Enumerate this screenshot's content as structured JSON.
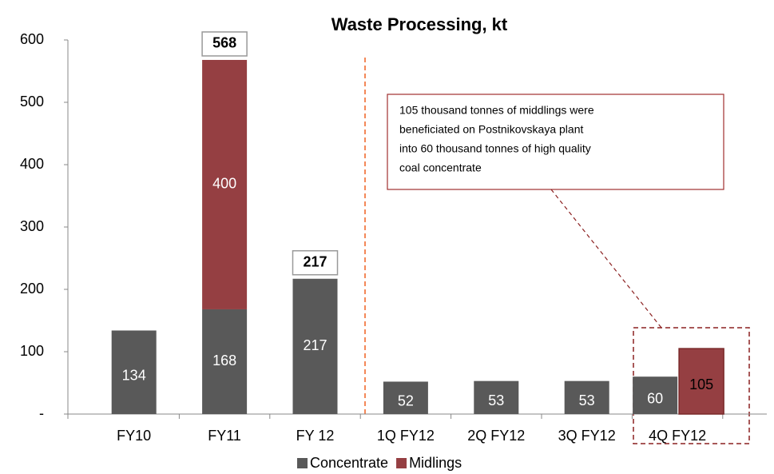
{
  "chart_data": {
    "type": "bar",
    "title": "Waste Processing, kt",
    "categories": [
      "FY10",
      "FY11",
      "FY 12",
      "1Q FY12",
      "2Q FY12",
      "3Q FY12",
      "4Q FY12"
    ],
    "series": [
      {
        "name": "Concentrate",
        "color": "#595959",
        "values": [
          134,
          168,
          217,
          52,
          53,
          53,
          60
        ]
      },
      {
        "name": "Midlings",
        "color": "#953f42",
        "values": [
          null,
          400,
          null,
          null,
          null,
          null,
          105
        ]
      }
    ],
    "stacked": [
      true,
      true,
      true,
      true,
      true,
      true,
      false
    ],
    "totals": [
      null,
      568,
      217,
      null,
      null,
      null,
      null
    ],
    "annotation": [
      "105 thousand tonnes of middlings were",
      "beneficiated on Postnikovskaya plant",
      "into 60 thousand tonnes of high quality",
      "coal concentrate"
    ],
    "ylim": [
      0,
      600
    ],
    "yticks": [
      {
        "value": 0,
        "label": "-"
      },
      100,
      200,
      300,
      400,
      500,
      600
    ],
    "legend": "bottom"
  }
}
